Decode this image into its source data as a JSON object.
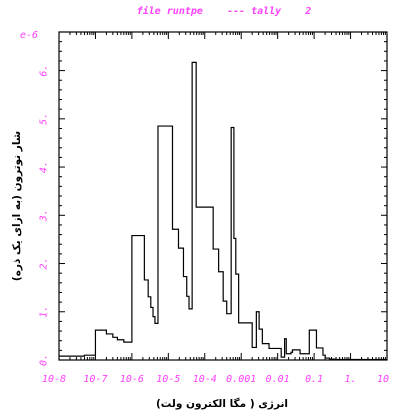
{
  "chart_data": {
    "type": "line",
    "step": true,
    "title": "file runtpe    --- tally    2",
    "xlabel": "انرژی ( مگا الکترون ولت)",
    "ylabel": "شار نوترون (به ازای یک ذره)",
    "y_multiplier_label": "e-6",
    "x_scale": "log",
    "xlim": [
      1e-08,
      10
    ],
    "ylim": [
      0,
      6.8
    ],
    "x_ticks": [
      1e-08,
      1e-07,
      1e-06,
      1e-05,
      0.0001,
      0.001,
      0.01,
      0.1,
      1,
      10
    ],
    "x_tick_labels": [
      "10-8",
      "10-7",
      "10-6",
      "10-5",
      "10-4",
      "0.001",
      "0.01",
      "0.1",
      "1.",
      "10"
    ],
    "y_ticks": [
      0,
      1,
      2,
      3,
      4,
      5,
      6
    ],
    "y_tick_labels": [
      "0.",
      "1.",
      "2.",
      "3.",
      "4.",
      "5.",
      "6."
    ],
    "colors": {
      "text": "#ff40ff",
      "line": "#000000",
      "frame": "#000000"
    },
    "series": [
      {
        "edges": [
          1e-08,
          5e-08,
          1e-07,
          2e-07,
          3e-07,
          4e-07,
          6e-07,
          1e-06,
          2.2e-06,
          2.8e-06,
          3.3e-06,
          3.8e-06,
          4.3e-06,
          5.2e-06,
          1.3e-05,
          1.9e-05,
          2.6e-05,
          3.2e-05,
          3.7e-05,
          4.5e-05,
          5.8e-05,
          0.00017,
          0.00024,
          0.00032,
          0.0004,
          0.00053,
          0.00063,
          0.00071,
          0.00085,
          0.002,
          0.0026,
          0.0031,
          0.0038,
          0.0058,
          0.0125,
          0.0155,
          0.0172,
          0.0233,
          0.0255,
          0.0412,
          0.0738,
          0.116,
          0.175,
          0.202,
          0.263,
          0.38,
          0.81,
          1.18,
          1.36,
          2.48,
          3.47,
          10
        ],
        "values": [
          0.08,
          0.1,
          0.62,
          0.54,
          0.47,
          0.42,
          0.37,
          2.58,
          1.66,
          1.31,
          1.09,
          0.9,
          0.76,
          4.85,
          2.71,
          2.32,
          1.73,
          1.32,
          1.06,
          6.17,
          3.17,
          2.3,
          1.83,
          1.22,
          0.96,
          4.82,
          2.52,
          1.78,
          0.77,
          0.26,
          1.0,
          0.64,
          0.34,
          0.24,
          0.06,
          0.44,
          0.13,
          0.16,
          0.21,
          0.13,
          0.62,
          0.25,
          0.1,
          0.04,
          0.02,
          0.01,
          0.01,
          0.01,
          0.01,
          0.01,
          0.01
        ]
      }
    ]
  }
}
